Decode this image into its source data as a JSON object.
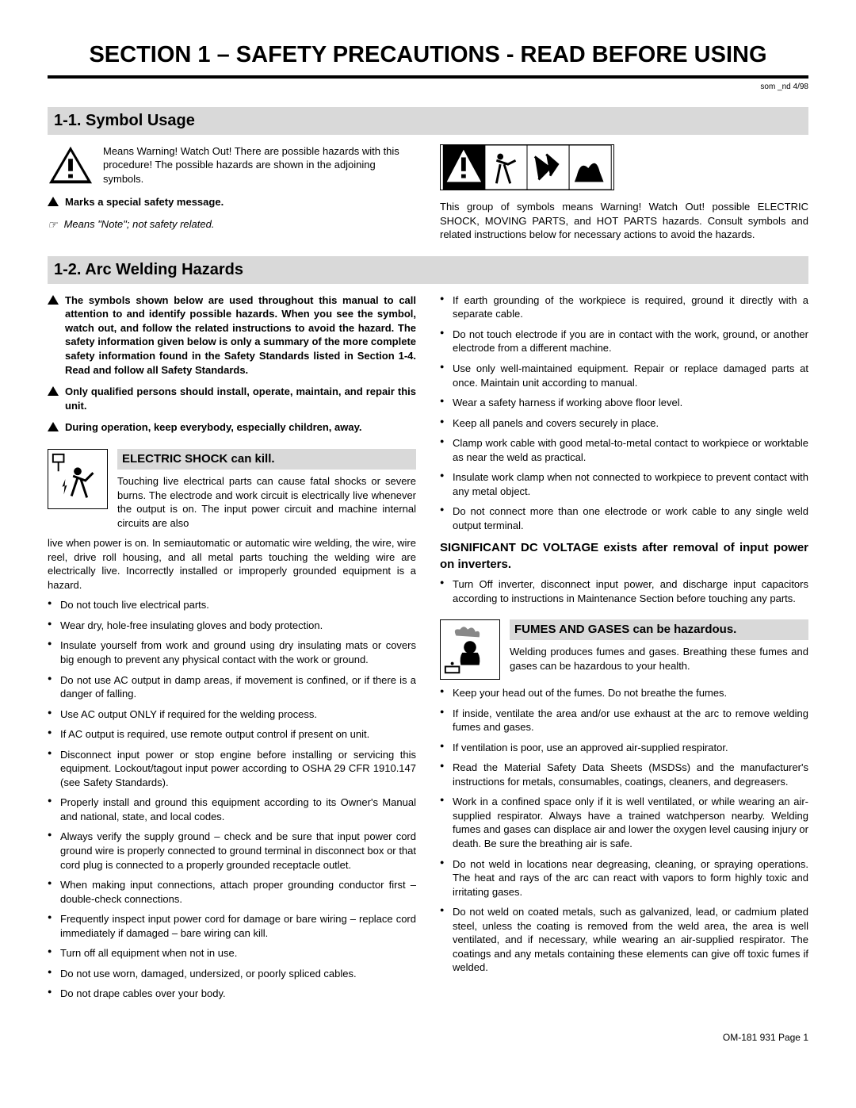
{
  "section_title": "SECTION 1 – SAFETY PRECAUTIONS - READ BEFORE USING",
  "doc_id": "som _nd 4/98",
  "sub1": {
    "title": "1-1.   Symbol Usage",
    "warning_text": "Means Warning! Watch Out! There are possible hazards with this procedure! The possible hazards are shown in the adjoining symbols.",
    "marks_text": "Marks a special safety message.",
    "note_icon": "☞",
    "note_text": "Means \"Note\"; not safety related.",
    "symbols_text": "This group of symbols means Warning! Watch Out! possible ELECTRIC SHOCK, MOVING PARTS, and HOT PARTS hazards. Consult symbols and related instructions below for necessary actions to avoid the hazards."
  },
  "sub2": {
    "title": "1-2.   Arc Welding Hazards",
    "intro1": "The symbols shown below are used throughout this manual to call attention to and identify possible hazards. When you see the symbol, watch out, and follow the related instructions to avoid the hazard. The safety information given below is only a summary of the more complete safety information found in the Safety Standards listed in Section 1-4. Read and follow all Safety Standards.",
    "intro2": "Only qualified persons should install, operate, maintain, and repair this unit.",
    "intro3": "During operation, keep everybody, especially children, away.",
    "shock": {
      "title": "ELECTRIC SHOCK can kill.",
      "desc": "Touching live electrical parts can cause fatal shocks or severe burns. The electrode and work circuit is electrically live whenever the output is on. The input power circuit and machine internal circuits are also",
      "cont": "live when power is on. In semiautomatic or automatic wire welding, the wire, wire reel, drive roll housing, and all metal parts touching the welding wire are electrically live. Incorrectly installed or improperly grounded equipment is a hazard.",
      "bullets": [
        "Do not touch live electrical parts.",
        "Wear dry, hole-free insulating gloves and body protection.",
        "Insulate yourself from work and ground using dry insulating mats or covers big enough to prevent any physical contact with the work or ground.",
        "Do not use AC output in damp areas, if movement is confined, or if there is a danger of falling.",
        "Use AC output ONLY if required for the welding process.",
        "If AC output is required, use remote output control if present on unit.",
        "Disconnect input power or stop engine before installing or servicing this equipment. Lockout/tagout input power according to OSHA 29 CFR 1910.147 (see Safety Standards).",
        "Properly install and ground this equipment according to its Owner's Manual and national, state, and local codes.",
        "Always verify the supply ground – check and be sure that input power cord ground wire is properly connected to ground terminal in disconnect box or that cord plug is connected to a properly grounded receptacle outlet.",
        "When making input connections, attach proper grounding conductor first – double-check connections.",
        "Frequently inspect input power cord for damage or bare wiring – replace cord immediately if damaged – bare wiring can kill.",
        "Turn off all equipment when not in use.",
        "Do not use worn, damaged, undersized, or poorly spliced cables.",
        "Do not drape cables over your body."
      ]
    },
    "shock_right": [
      "If earth grounding of the workpiece is required, ground it directly with a separate cable.",
      "Do not touch electrode if you are in contact with the work, ground, or another electrode from a different machine.",
      "Use only well-maintained equipment. Repair or replace damaged parts at once. Maintain unit according to manual.",
      "Wear a safety harness if working above floor level.",
      "Keep all panels and covers securely in place.",
      "Clamp work cable with good metal-to-metal contact to workpiece or worktable as near the weld as practical.",
      "Insulate work clamp when not connected to workpiece to prevent contact with any metal object.",
      "Do not connect more than one electrode or work cable to any single weld output terminal."
    ],
    "sig_title": "SIGNIFICANT DC VOLTAGE exists after removal of input power on inverters.",
    "sig_bullets": [
      "Turn Off inverter, disconnect input power, and discharge input capacitors according to instructions in Maintenance Section before touching any parts."
    ],
    "fumes": {
      "title": "FUMES AND GASES can be hazardous.",
      "desc": "Welding produces fumes and gases. Breathing these fumes and gases can be hazardous to your health.",
      "bullets": [
        "Keep your head out of the fumes. Do not breathe the fumes.",
        "If inside, ventilate the area and/or use exhaust at the arc to remove welding fumes and gases.",
        "If ventilation is poor, use an approved air-supplied respirator.",
        "Read the Material Safety Data Sheets (MSDSs) and the manufacturer's instructions for metals, consumables, coatings, cleaners, and degreasers.",
        "Work in a confined space only if it is well ventilated, or while wearing an air-supplied respirator. Always have a trained watchperson nearby. Welding fumes and gases can displace air and lower the oxygen level causing injury or death. Be sure the breathing air is safe.",
        "Do not weld in locations near degreasing, cleaning, or spraying operations. The heat and rays of the arc can react with vapors to form highly toxic and irritating gases.",
        "Do not weld on coated metals, such as galvanized, lead, or cadmium plated steel, unless the coating is removed from the weld area, the area is well ventilated, and if necessary, while wearing an air-supplied respirator. The coatings and any metals containing these elements can give off toxic fumes if welded."
      ]
    }
  },
  "footer": "OM-181 931 Page 1"
}
